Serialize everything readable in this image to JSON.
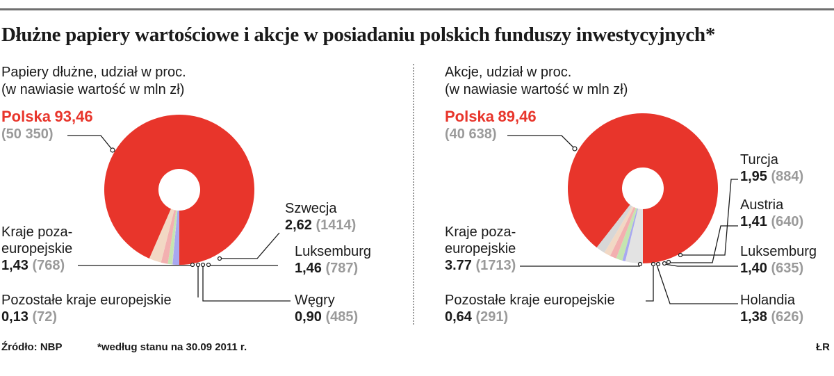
{
  "title": "Dłużne papiery wartościowe i akcje w posiadaniu polskich funduszy inwestycyjnych*",
  "colors": {
    "highlight": "#e8352b",
    "muted": "#9a9a9a",
    "text": "#1a1a1a"
  },
  "chart_data": [
    {
      "type": "pie",
      "subtitle_line1": "Papiery dłużne, udział w proc.",
      "subtitle_line2": "(w nawiasie wartość w mln zł)",
      "slices": [
        {
          "label": "Polska",
          "pct": 93.46,
          "pct_text": "93,46",
          "value_text": "(50 350)",
          "color": "#e8352b"
        },
        {
          "label": "Kraje poza-europejskie",
          "label_line1": "Kraje poza-",
          "label_line2": "europejskie",
          "pct": 1.43,
          "pct_text": "1,43",
          "value_text": "(768)",
          "color": "#a8a8f0"
        },
        {
          "label": "Pozostałe kraje europejskie",
          "pct": 0.13,
          "pct_text": "0,13",
          "value_text": "(72)",
          "color": "#cfcfcf"
        },
        {
          "label": "Węgry",
          "pct": 0.9,
          "pct_text": "0,90",
          "value_text": "(485)",
          "color": "#c5e5b0"
        },
        {
          "label": "Luksemburg",
          "pct": 1.46,
          "pct_text": "1,46",
          "value_text": "(787)",
          "color": "#f3b0b0"
        },
        {
          "label": "Szwecja",
          "pct": 2.62,
          "pct_text": "2,62",
          "value_text": "(1414)",
          "color": "#f2d8c4"
        }
      ]
    },
    {
      "type": "pie",
      "subtitle_line1": "Akcje, udział w proc.",
      "subtitle_line2": "(w nawiasie wartość w mln zł)",
      "slices": [
        {
          "label": "Polska",
          "pct": 89.46,
          "pct_text": "89,46",
          "value_text": "(40 638)",
          "color": "#e8352b"
        },
        {
          "label": "Kraje poza-europejskie",
          "label_line1": "Kraje poza-",
          "label_line2": "europejskie",
          "pct": 3.77,
          "pct_text": "3.77",
          "value_text": "(1713)",
          "color": "#e3e3e3"
        },
        {
          "label": "Pozostałe kraje europejskie",
          "pct": 0.64,
          "pct_text": "0,64",
          "value_text": "(291)",
          "color": "#a8a8f0"
        },
        {
          "label": "Holandia",
          "pct": 1.38,
          "pct_text": "1,38",
          "value_text": "(626)",
          "color": "#c5e5b0"
        },
        {
          "label": "Luksemburg",
          "pct": 1.4,
          "pct_text": "1,40",
          "value_text": "(635)",
          "color": "#f3b0b0"
        },
        {
          "label": "Austria",
          "pct": 1.41,
          "pct_text": "1,41",
          "value_text": "(640)",
          "color": "#f2d8c4"
        },
        {
          "label": "Turcja",
          "pct": 1.95,
          "pct_text": "1,95",
          "value_text": "(884)",
          "color": "#d7d7d7"
        }
      ]
    }
  ],
  "footer": {
    "source": "Źródło: NBP",
    "note": "*według stanu na 30.09 2011 r.",
    "credit": "ŁR"
  }
}
